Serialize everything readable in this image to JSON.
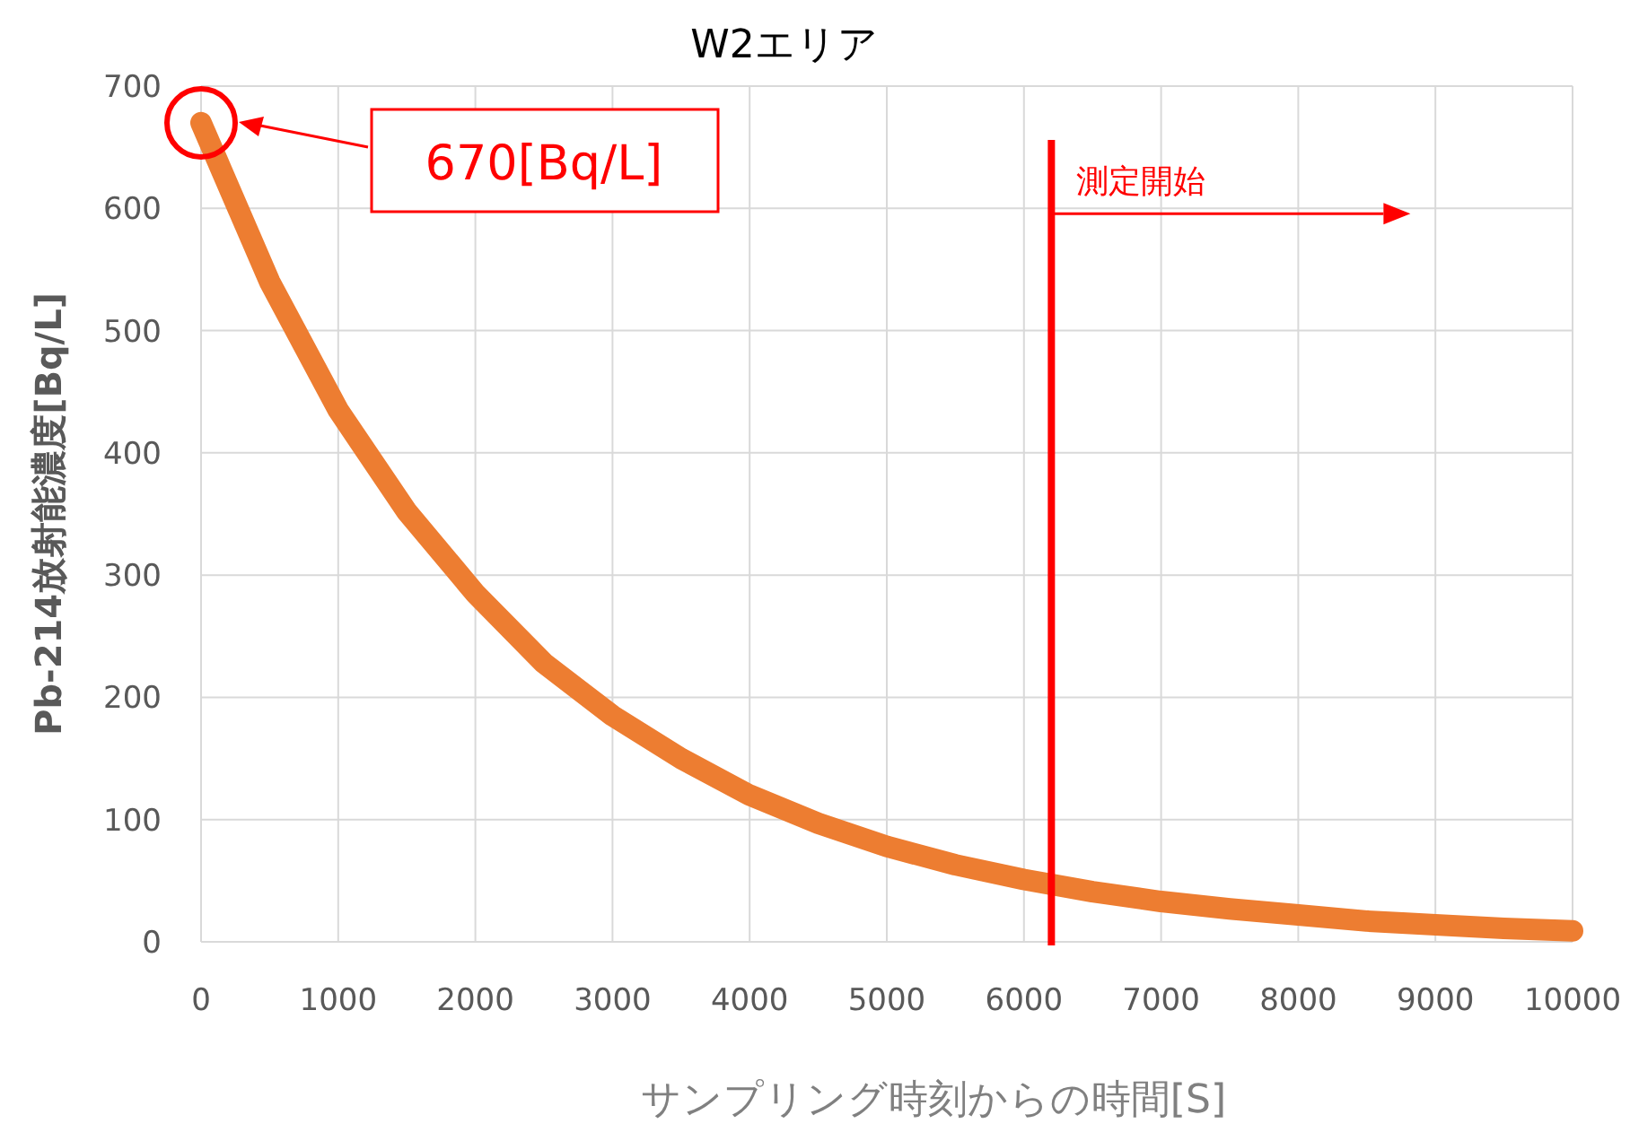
{
  "chart_data": {
    "type": "line",
    "title": "W2エリア",
    "xlabel": "サンプリング時刻からの時間[S]",
    "ylabel": "Pb-214放射能濃度[Bq/L]",
    "x": [
      0,
      500,
      1000,
      1500,
      2000,
      2500,
      3000,
      3500,
      4000,
      4500,
      5000,
      5500,
      6000,
      6500,
      7000,
      7500,
      8000,
      8500,
      9000,
      9500,
      10000
    ],
    "series": [
      {
        "color": "#ed7d31",
        "values": [
          670,
          540,
          435,
          352,
          285,
          228,
          185,
          150,
          120,
          97,
          78,
          63,
          51,
          41,
          33,
          27,
          22,
          17,
          14,
          11,
          9
        ]
      }
    ],
    "xlim": [
      0,
      10000
    ],
    "xticks": [
      0,
      1000,
      2000,
      3000,
      4000,
      5000,
      6000,
      7000,
      8000,
      9000,
      10000
    ],
    "ylim": [
      0,
      700
    ],
    "yticks": [
      0,
      100,
      200,
      300,
      400,
      500,
      600,
      700
    ],
    "grid": true,
    "ref_lines": [
      {
        "axis": "x",
        "value": 6200,
        "label": "測定開始",
        "color": "#ff0000"
      }
    ],
    "annotations": [
      "670[Bq/L]"
    ]
  }
}
